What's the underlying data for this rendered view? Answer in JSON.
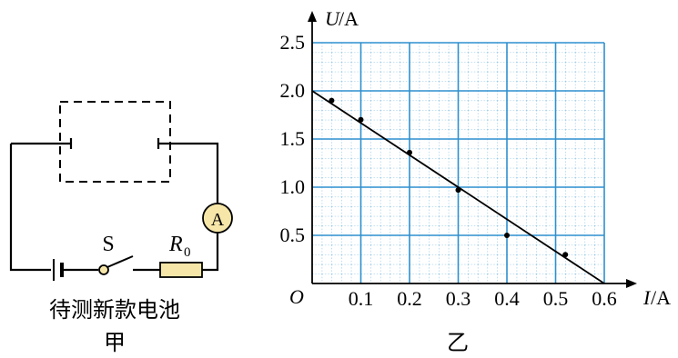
{
  "circuit": {
    "ammeter_label": "A",
    "switch_label": "S",
    "resistor_label": "R",
    "resistor_subscript": "0",
    "battery_caption": "待测新款电池"
  },
  "captions": {
    "left": "甲",
    "right": "乙"
  },
  "colors": {
    "grid_major": "#2e8fcf",
    "grid_minor": "#5aa9d8",
    "component_fill": "#f6e6a8"
  },
  "chart_data": {
    "type": "scatter",
    "xlabel_var": "I",
    "xlabel_unit": "/A",
    "ylabel_var": "U",
    "ylabel_unit": "/A",
    "origin_label": "O",
    "xlim": [
      0,
      0.6
    ],
    "ylim": [
      0,
      2.5
    ],
    "x_ticks": [
      "0.1",
      "0.2",
      "0.3",
      "0.4",
      "0.5",
      "0.6"
    ],
    "y_ticks": [
      "0.5",
      "1.0",
      "1.5",
      "2.0",
      "2.5"
    ],
    "grid": true,
    "points": [
      {
        "x": 0.04,
        "y": 1.9
      },
      {
        "x": 0.1,
        "y": 1.7
      },
      {
        "x": 0.2,
        "y": 1.36
      },
      {
        "x": 0.3,
        "y": 0.97
      },
      {
        "x": 0.4,
        "y": 0.5
      },
      {
        "x": 0.52,
        "y": 0.3
      }
    ],
    "fit_line": {
      "x": [
        0,
        0.6
      ],
      "y": [
        2.0,
        0
      ]
    }
  }
}
